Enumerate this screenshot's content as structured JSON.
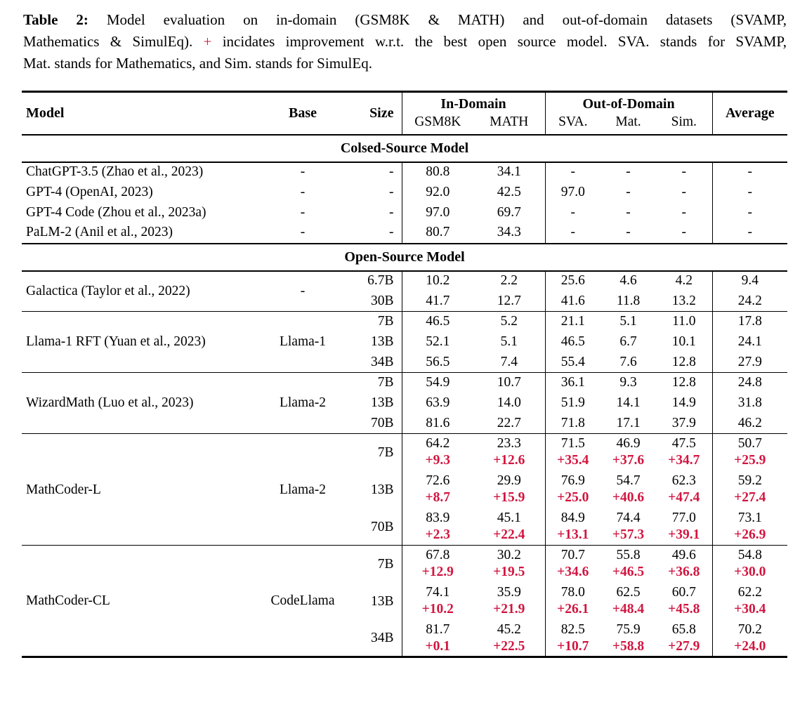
{
  "caption": {
    "label": "Table 2:",
    "line1_rest": "Model evaluation on in-domain (GSM8K & MATH) and out-of-domain datasets (SVAMP,",
    "line2_before_plus": "Mathematics & SimulEq).",
    "plus": "+",
    "line2_after_plus": "incidates improvement w.r.t. the best open source model. SVA. stands for SVAMP,",
    "line3": "Mat. stands for Mathematics, and Sim. stands for SimulEq."
  },
  "colors": {
    "delta_red": "#d2153f",
    "text": "#000000"
  },
  "table": {
    "header": {
      "model": "Model",
      "base": "Base",
      "size": "Size",
      "in_domain": "In-Domain",
      "out_of_domain": "Out-of-Domain",
      "average": "Average",
      "sub_in": [
        "GSM8K",
        "MATH"
      ],
      "sub_out": [
        "SVA.",
        "Mat.",
        "Sim."
      ]
    },
    "sections": [
      {
        "title": "Colsed-Source Model",
        "dividers": false,
        "blocks": [
          {
            "model": "ChatGPT-3.5 (Zhao et al., 2023)",
            "base": "-",
            "rows": [
              {
                "size": "-",
                "values": [
                  "80.8",
                  "34.1",
                  "-",
                  "-",
                  "-",
                  "-"
                ]
              }
            ]
          },
          {
            "model": "GPT-4 (OpenAI, 2023)",
            "base": "-",
            "rows": [
              {
                "size": "-",
                "values": [
                  "92.0",
                  "42.5",
                  "97.0",
                  "-",
                  "-",
                  "-"
                ]
              }
            ]
          },
          {
            "model": "GPT-4 Code (Zhou et al., 2023a)",
            "base": "-",
            "rows": [
              {
                "size": "-",
                "values": [
                  "97.0",
                  "69.7",
                  "-",
                  "-",
                  "-",
                  "-"
                ]
              }
            ]
          },
          {
            "model": "PaLM-2 (Anil et al., 2023)",
            "base": "-",
            "rows": [
              {
                "size": "-",
                "values": [
                  "80.7",
                  "34.3",
                  "-",
                  "-",
                  "-",
                  "-"
                ]
              }
            ]
          }
        ]
      },
      {
        "title": "Open-Source Model",
        "dividers": true,
        "blocks": [
          {
            "model": "Galactica (Taylor et al., 2022)",
            "base": "-",
            "rows": [
              {
                "size": "6.7B",
                "values": [
                  "10.2",
                  "2.2",
                  "25.6",
                  "4.6",
                  "4.2",
                  "9.4"
                ]
              },
              {
                "size": "30B",
                "values": [
                  "41.7",
                  "12.7",
                  "41.6",
                  "11.8",
                  "13.2",
                  "24.2"
                ]
              }
            ]
          },
          {
            "model": "Llama-1 RFT (Yuan et al., 2023)",
            "base": "Llama-1",
            "rows": [
              {
                "size": "7B",
                "values": [
                  "46.5",
                  "5.2",
                  "21.1",
                  "5.1",
                  "11.0",
                  "17.8"
                ]
              },
              {
                "size": "13B",
                "values": [
                  "52.1",
                  "5.1",
                  "46.5",
                  "6.7",
                  "10.1",
                  "24.1"
                ]
              },
              {
                "size": "34B",
                "values": [
                  "56.5",
                  "7.4",
                  "55.4",
                  "7.6",
                  "12.8",
                  "27.9"
                ]
              }
            ]
          },
          {
            "model": "WizardMath (Luo et al., 2023)",
            "base": "Llama-2",
            "rows": [
              {
                "size": "7B",
                "values": [
                  "54.9",
                  "10.7",
                  "36.1",
                  "9.3",
                  "12.8",
                  "24.8"
                ]
              },
              {
                "size": "13B",
                "values": [
                  "63.9",
                  "14.0",
                  "51.9",
                  "14.1",
                  "14.9",
                  "31.8"
                ]
              },
              {
                "size": "70B",
                "values": [
                  "81.6",
                  "22.7",
                  "71.8",
                  "17.1",
                  "37.9",
                  "46.2"
                ]
              }
            ]
          },
          {
            "model": "MathCoder-L",
            "base": "Llama-2",
            "rows": [
              {
                "size": "7B",
                "values": [
                  "64.2",
                  "23.3",
                  "71.5",
                  "46.9",
                  "47.5",
                  "50.7"
                ],
                "deltas": [
                  "+9.3",
                  "+12.6",
                  "+35.4",
                  "+37.6",
                  "+34.7",
                  "+25.9"
                ]
              },
              {
                "size": "13B",
                "values": [
                  "72.6",
                  "29.9",
                  "76.9",
                  "54.7",
                  "62.3",
                  "59.2"
                ],
                "deltas": [
                  "+8.7",
                  "+15.9",
                  "+25.0",
                  "+40.6",
                  "+47.4",
                  "+27.4"
                ]
              },
              {
                "size": "70B",
                "values": [
                  "83.9",
                  "45.1",
                  "84.9",
                  "74.4",
                  "77.0",
                  "73.1"
                ],
                "deltas": [
                  "+2.3",
                  "+22.4",
                  "+13.1",
                  "+57.3",
                  "+39.1",
                  "+26.9"
                ]
              }
            ]
          },
          {
            "model": "MathCoder-CL",
            "base": "CodeLlama",
            "rows": [
              {
                "size": "7B",
                "values": [
                  "67.8",
                  "30.2",
                  "70.7",
                  "55.8",
                  "49.6",
                  "54.8"
                ],
                "deltas": [
                  "+12.9",
                  "+19.5",
                  "+34.6",
                  "+46.5",
                  "+36.8",
                  "+30.0"
                ]
              },
              {
                "size": "13B",
                "values": [
                  "74.1",
                  "35.9",
                  "78.0",
                  "62.5",
                  "60.7",
                  "62.2"
                ],
                "deltas": [
                  "+10.2",
                  "+21.9",
                  "+26.1",
                  "+48.4",
                  "+45.8",
                  "+30.4"
                ]
              },
              {
                "size": "34B",
                "values": [
                  "81.7",
                  "45.2",
                  "82.5",
                  "75.9",
                  "65.8",
                  "70.2"
                ],
                "deltas": [
                  "+0.1",
                  "+22.5",
                  "+10.7",
                  "+58.8",
                  "+27.9",
                  "+24.0"
                ]
              }
            ]
          }
        ]
      }
    ]
  }
}
